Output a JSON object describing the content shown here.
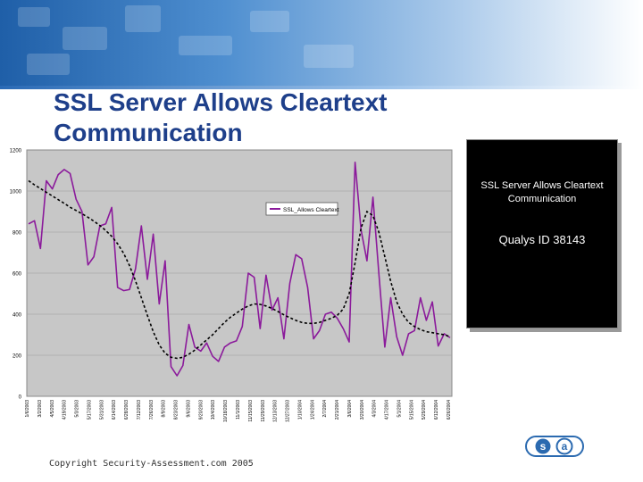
{
  "slide": {
    "title": "SSL Server Allows Cleartext Communication",
    "infobox": {
      "description": "SSL Server Allows Cleartext Communication",
      "qualys_id": "Qualys ID 38143"
    },
    "copyright": "Copyright Security-Assessment.com 2005",
    "logo_letters": [
      "s",
      "a"
    ]
  },
  "chart_data": {
    "type": "line",
    "ylim": [
      0,
      1200
    ],
    "yticks": [
      0,
      200,
      400,
      600,
      800,
      1000,
      1200
    ],
    "xticks": [
      "1/6/2003",
      "3/2/2003",
      "4/5/2003",
      "4/19/2003",
      "5/3/2003",
      "5/17/2003",
      "5/31/2003",
      "6/14/2003",
      "6/28/2003",
      "7/12/2003",
      "7/26/2003",
      "8/9/2003",
      "8/23/2003",
      "9/6/2003",
      "9/20/2003",
      "10/4/2003",
      "10/18/2003",
      "11/1/2003",
      "11/15/2003",
      "11/29/2003",
      "12/13/2003",
      "12/27/2003",
      "1/10/2004",
      "1/24/2004",
      "2/7/2004",
      "2/21/2004",
      "3/6/2004",
      "3/20/2004",
      "4/3/2004",
      "4/17/2004",
      "5/1/2004",
      "5/15/2004",
      "5/29/2004",
      "6/12/2004",
      "6/26/2004"
    ],
    "legend": {
      "label": "SSL_Allows Cleartext",
      "placement": "upper-right"
    },
    "series": [
      {
        "name": "SSL_Allows Cleartext",
        "color": "#8b1a9b",
        "values": [
          840,
          855,
          720,
          1050,
          1010,
          1080,
          1105,
          1085,
          960,
          900,
          640,
          680,
          830,
          840,
          920,
          530,
          515,
          520,
          620,
          830,
          570,
          790,
          450,
          660,
          145,
          100,
          150,
          350,
          240,
          220,
          260,
          195,
          170,
          240,
          260,
          270,
          340,
          600,
          580,
          330,
          590,
          420,
          480,
          280,
          550,
          690,
          670,
          530,
          280,
          320,
          400,
          410,
          380,
          330,
          265,
          1140,
          810,
          660,
          970,
          600,
          240,
          480,
          290,
          200,
          305,
          320,
          480,
          370,
          460,
          245,
          305,
          285
        ],
        "trend": [
          1050,
          1030,
          1012,
          994,
          976,
          958,
          940,
          921,
          905,
          889,
          872,
          853,
          832,
          808,
          779,
          743,
          697,
          637,
          563,
          480,
          395,
          315,
          250,
          210,
          190,
          185,
          190,
          205,
          225,
          250,
          275,
          300,
          330,
          360,
          385,
          405,
          425,
          440,
          450,
          448,
          440,
          428,
          413,
          397,
          383,
          370,
          360,
          355,
          355,
          360,
          370,
          380,
          395,
          425,
          500,
          650,
          820,
          900,
          880,
          800,
          680,
          560,
          460,
          400,
          360,
          340,
          325,
          315,
          310,
          305,
          300,
          290
        ]
      }
    ]
  }
}
